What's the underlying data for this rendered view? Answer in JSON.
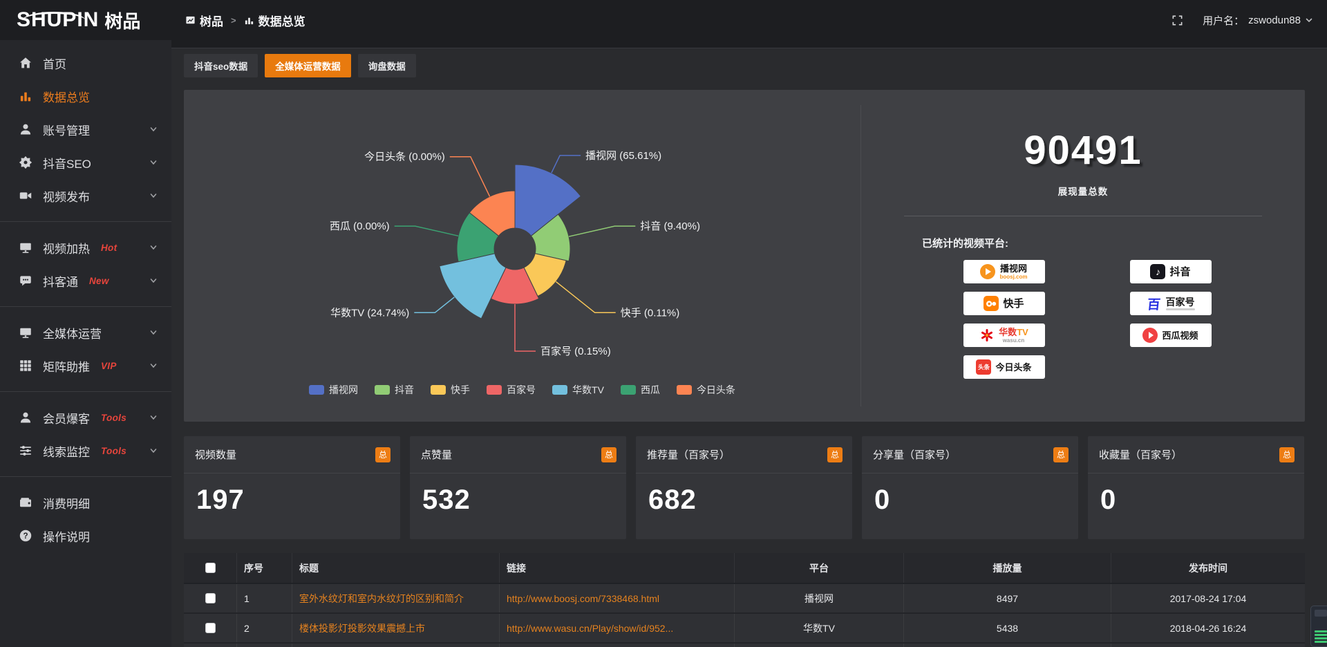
{
  "colors": {
    "accent_orange": "#e87a0e",
    "link_orange": "#e5821f",
    "tag_red": "#e8453c",
    "card_badge_orange": "#ed7d14",
    "panel_bg": "#3f4044"
  },
  "header": {
    "logo_en": "SHUPIN",
    "logo_cn": "树品",
    "breadcrumb": [
      {
        "label": "树品",
        "icon": "report-icon"
      },
      {
        "label": "数据总览",
        "icon": "bar-chart-icon"
      }
    ],
    "breadcrumb_separator": ">",
    "fullscreen_icon": "fullscreen-icon",
    "username_label": "用户名：",
    "username": "zswodun88"
  },
  "sidebar": {
    "items": [
      {
        "label": "首页",
        "icon": "home",
        "active": false,
        "chevron": false,
        "divider_after": false
      },
      {
        "label": "数据总览",
        "icon": "bar-chart",
        "active": true,
        "chevron": false,
        "divider_after": false
      },
      {
        "label": "账号管理",
        "icon": "user",
        "active": false,
        "chevron": true,
        "divider_after": false
      },
      {
        "label": "抖音SEO",
        "icon": "gear",
        "active": false,
        "chevron": true,
        "divider_after": false
      },
      {
        "label": "视频发布",
        "icon": "video",
        "active": false,
        "chevron": true,
        "divider_after": true
      },
      {
        "label": "视频加热",
        "icon": "screen",
        "tag": "Hot",
        "active": false,
        "chevron": true,
        "divider_after": false
      },
      {
        "label": "抖客通",
        "icon": "chat",
        "tag": "New",
        "active": false,
        "chevron": true,
        "divider_after": true
      },
      {
        "label": "全媒体运营",
        "icon": "monitor",
        "active": false,
        "chevron": true,
        "divider_after": false
      },
      {
        "label": "矩阵助推",
        "icon": "grid",
        "tag": "VIP",
        "active": false,
        "chevron": true,
        "divider_after": true
      },
      {
        "label": "会员爆客",
        "icon": "user",
        "tag": "Tools",
        "active": false,
        "chevron": true,
        "divider_after": false
      },
      {
        "label": "线索监控",
        "icon": "sliders",
        "tag": "Tools",
        "active": false,
        "chevron": true,
        "divider_after": true
      },
      {
        "label": "消费明细",
        "icon": "wallet",
        "active": false,
        "chevron": false,
        "divider_after": false
      },
      {
        "label": "操作说明",
        "icon": "question",
        "active": false,
        "chevron": false,
        "divider_after": false
      }
    ]
  },
  "tabs": [
    {
      "label": "抖音seo数据",
      "active": false
    },
    {
      "label": "全媒体运营数据",
      "active": true
    },
    {
      "label": "询盘数据",
      "active": false
    }
  ],
  "chart_data": {
    "type": "pie",
    "variant": "nightingale-rose",
    "title": "",
    "legend_position": "bottom",
    "value_unit": "percent",
    "inner_radius": 30,
    "start_angle_deg": -90,
    "series": [
      {
        "name": "播视网",
        "value": 65.61,
        "label": "播视网 (65.61%)",
        "color": "#5470c6",
        "display_radius": 122
      },
      {
        "name": "抖音",
        "value": 9.4,
        "label": "抖音 (9.40%)",
        "color": "#91cc75",
        "display_radius": 80
      },
      {
        "name": "快手",
        "value": 0.11,
        "label": "快手 (0.11%)",
        "color": "#fac858",
        "display_radius": 76
      },
      {
        "name": "百家号",
        "value": 0.15,
        "label": "百家号 (0.15%)",
        "color": "#ee6666",
        "display_radius": 80
      },
      {
        "name": "华数TV",
        "value": 24.74,
        "label": "华数TV (24.74%)",
        "color": "#73c0de",
        "display_radius": 112
      },
      {
        "name": "西瓜",
        "value": 0.0,
        "label": "西瓜 (0.00%)",
        "color": "#3ba272",
        "display_radius": 84
      },
      {
        "name": "今日头条",
        "value": 0.0,
        "label": "今日头条 (0.00%)",
        "color": "#fc8452",
        "display_radius": 84
      }
    ]
  },
  "summary": {
    "total_value": "90491",
    "total_label": "展现量总数",
    "platforms_label": "已统计的视频平台:",
    "platform_columns": [
      [
        {
          "name": "播视网",
          "sub": "boosj.com",
          "icon": "boosj-logo"
        },
        {
          "name": "快手",
          "icon": "kuaishou-logo"
        },
        {
          "name": "华数TV",
          "name_part1": "华数",
          "name_part2": "TV",
          "sub": "wasu.cn",
          "icon": "wasu-logo"
        },
        {
          "name": "今日头条",
          "icon_text": "头条",
          "icon": "toutiao-logo"
        }
      ],
      [
        {
          "name": "抖音",
          "icon": "douyin-logo"
        },
        {
          "name": "百家号",
          "icon_text": "百",
          "icon": "baijiahao-logo"
        },
        {
          "name": "西瓜视频",
          "icon": "xigua-logo"
        }
      ]
    ]
  },
  "stat_cards": [
    {
      "title": "视频数量",
      "badge": "总",
      "value": "197"
    },
    {
      "title": "点赞量",
      "badge": "总",
      "value": "532"
    },
    {
      "title": "推荐量（百家号）",
      "badge": "总",
      "value": "682"
    },
    {
      "title": "分享量（百家号）",
      "badge": "总",
      "value": "0"
    },
    {
      "title": "收藏量（百家号）",
      "badge": "总",
      "value": "0"
    }
  ],
  "table": {
    "columns": [
      "",
      "序号",
      "标题",
      "链接",
      "平台",
      "播放量",
      "发布时间"
    ],
    "rows": [
      {
        "index": "1",
        "title": "室外水纹灯和室内水纹灯的区别和简介",
        "link": "http://www.boosj.com/7338468.html",
        "platform": "播视网",
        "views": "8497",
        "published": "2017-08-24 17:04"
      },
      {
        "index": "2",
        "title": "楼体投影灯投影效果震撼上市",
        "link": "http://www.wasu.cn/Play/show/id/952...",
        "platform": "华数TV",
        "views": "5438",
        "published": "2018-04-26 16:24"
      }
    ]
  }
}
